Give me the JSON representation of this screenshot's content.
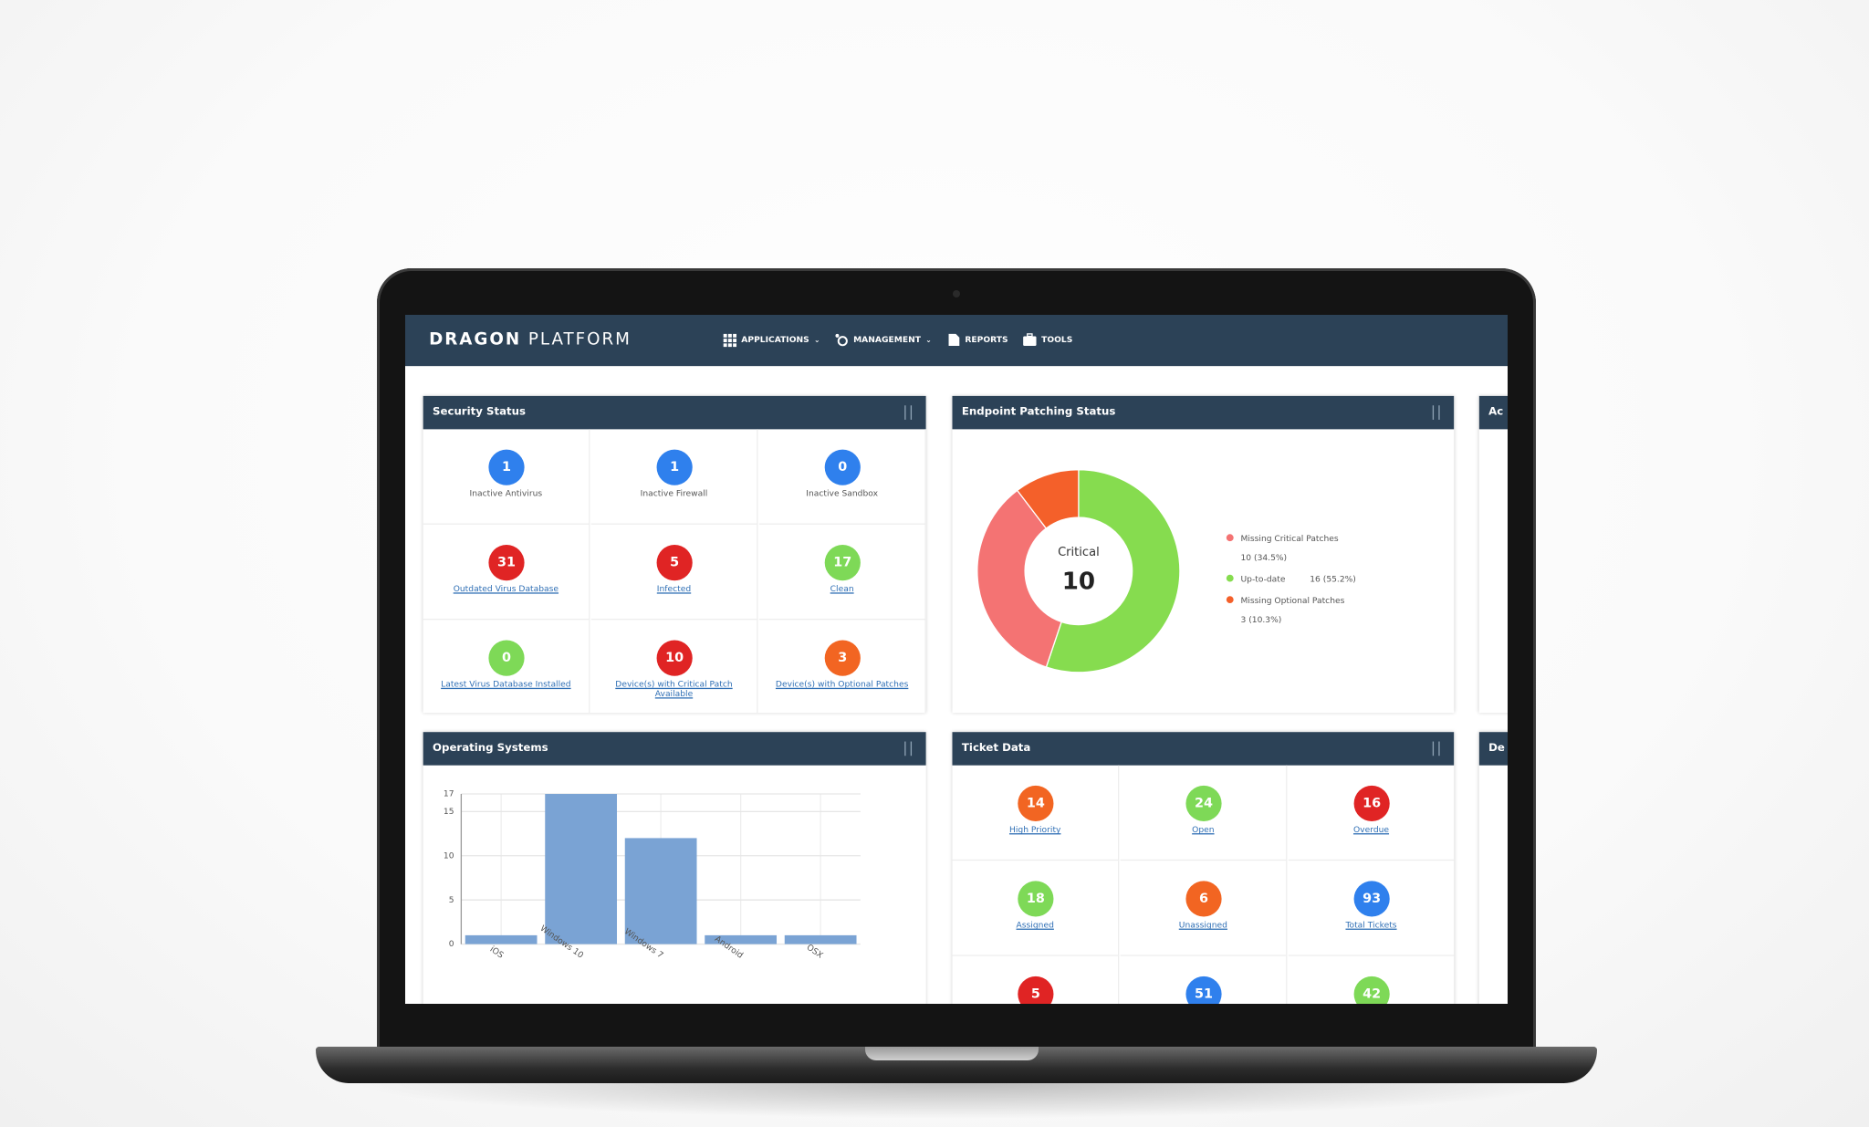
{
  "header": {
    "brand_bold": "DRAGON",
    "brand_light": "PLATFORM",
    "menu": [
      "APPLICATIONS",
      "MANAGEMENT",
      "REPORTS",
      "TOOLS"
    ]
  },
  "security_status": {
    "title": "Security Status",
    "items": [
      {
        "value": 1,
        "label": "Inactive Antivirus",
        "color": "#2f80ed"
      },
      {
        "value": 1,
        "label": "Inactive Firewall",
        "color": "#2f80ed"
      },
      {
        "value": 0,
        "label": "Inactive Sandbox",
        "color": "#2f80ed"
      },
      {
        "value": 31,
        "label": "Outdated Virus Database",
        "color": "#e02424",
        "link": true
      },
      {
        "value": 5,
        "label": "Infected",
        "color": "#e02424",
        "link": true
      },
      {
        "value": 17,
        "label": "Clean",
        "color": "#7ed957",
        "link": true
      },
      {
        "value": 0,
        "label": "Latest Virus Database Installed",
        "color": "#7ed957",
        "link": true
      },
      {
        "value": 10,
        "label": "Device(s) with Critical Patch Available",
        "color": "#e02424",
        "link": true
      },
      {
        "value": 3,
        "label": "Device(s) with Optional Patches",
        "color": "#f26522",
        "link": true
      }
    ]
  },
  "endpoint_patching": {
    "title": "Endpoint Patching Status",
    "type": "donut",
    "center_label": "Critical",
    "center_value": 10,
    "series": [
      {
        "name": "Missing Critical Patches",
        "value": 10,
        "value_label": "10 (34.5%)",
        "color": "#f47373"
      },
      {
        "name": "Up-to-date",
        "value": 16,
        "value_label": "16 (55.2%)",
        "color": "#86dc4f"
      },
      {
        "name": "Missing Optional Patches",
        "value": 3,
        "value_label": "3 (10.3%)",
        "color": "#f4602a"
      }
    ]
  },
  "operating_systems": {
    "title": "Operating Systems",
    "type": "bar",
    "categories": [
      "iOS",
      "Windows 10",
      "Windows 7",
      "Android",
      "OSX"
    ],
    "values": [
      1,
      17,
      12,
      1,
      1
    ],
    "color": "#7aa3d4",
    "ylim": [
      0,
      17
    ],
    "yticks": [
      0,
      5,
      10,
      15,
      17
    ],
    "grid": true
  },
  "ticket_data": {
    "title": "Ticket Data",
    "items": [
      {
        "value": 14,
        "label": "High Priority",
        "color": "#f26522"
      },
      {
        "value": 24,
        "label": "Open",
        "color": "#7ed957"
      },
      {
        "value": 16,
        "label": "Overdue",
        "color": "#e02424"
      },
      {
        "value": 18,
        "label": "Assigned",
        "color": "#7ed957"
      },
      {
        "value": 6,
        "label": "Unassigned",
        "color": "#f26522"
      },
      {
        "value": 93,
        "label": "Total Tickets",
        "color": "#2f80ed"
      },
      {
        "value": 5,
        "color": "#e02424"
      },
      {
        "value": 51,
        "color": "#2f80ed"
      },
      {
        "value": 42,
        "color": "#7ed957"
      }
    ]
  },
  "side_panels": [
    "Ac",
    "De"
  ]
}
